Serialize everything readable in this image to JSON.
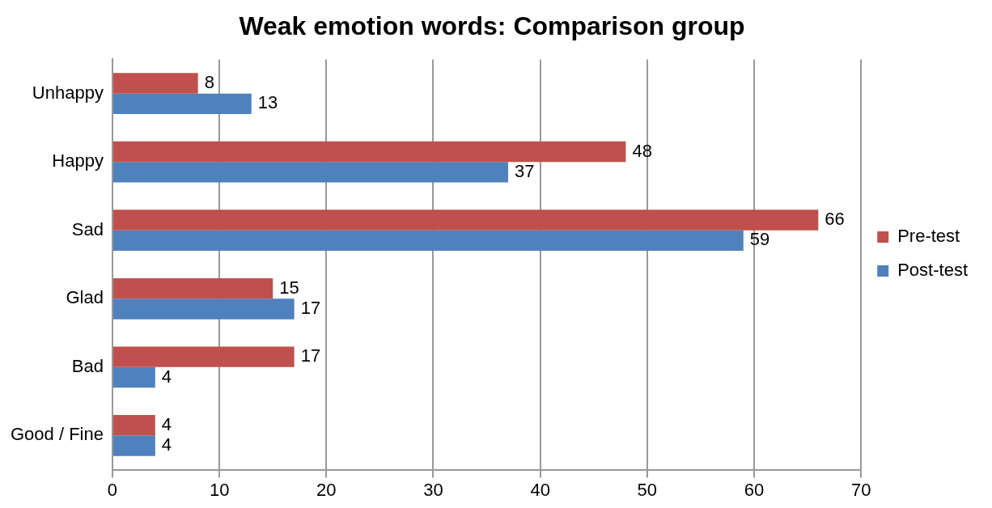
{
  "chart_data": {
    "type": "bar",
    "orientation": "horizontal",
    "title": "Weak emotion words: Comparison group",
    "categories": [
      "Unhappy",
      "Happy",
      "Sad",
      "Glad",
      "Bad",
      "Good / Fine"
    ],
    "series": [
      {
        "name": "Pre-test",
        "color": "#c0504d",
        "values": [
          8,
          48,
          66,
          15,
          17,
          4
        ]
      },
      {
        "name": "Post-test",
        "color": "#4f81bd",
        "values": [
          13,
          37,
          59,
          17,
          4,
          4
        ]
      }
    ],
    "xlim": [
      0,
      70
    ],
    "xticks": [
      0,
      10,
      20,
      30,
      40,
      50,
      60,
      70
    ],
    "grid": "x",
    "legend": "right",
    "data_labels": true
  }
}
